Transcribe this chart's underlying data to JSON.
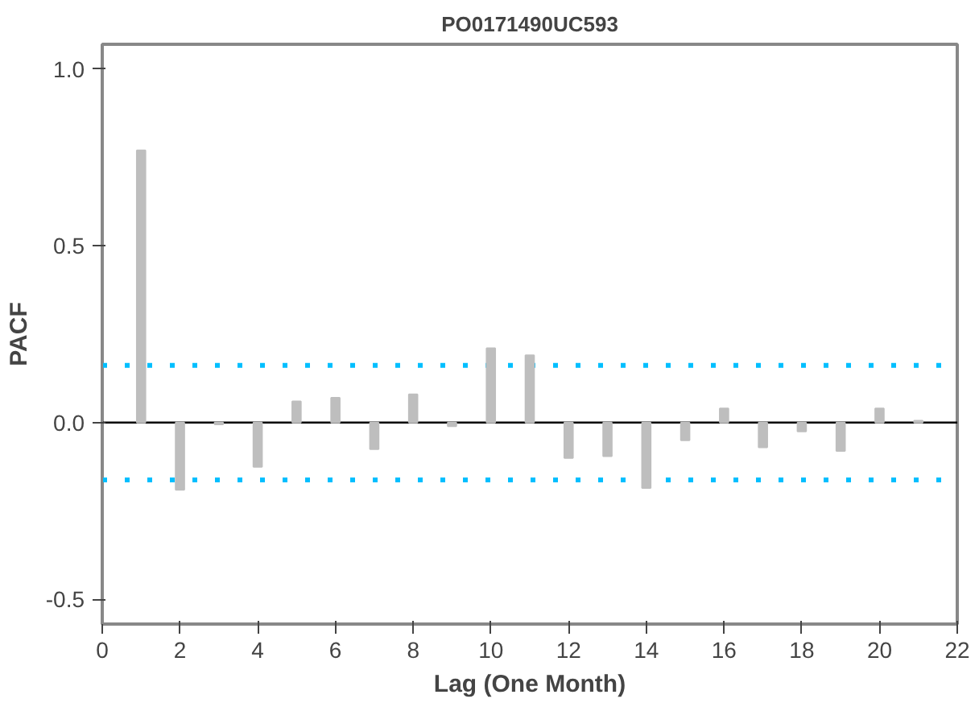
{
  "chart_data": {
    "type": "bar",
    "title": "PO0171490UC593",
    "xlabel": "Lag (One Month)",
    "ylabel": "PACF",
    "x": [
      1,
      2,
      3,
      4,
      5,
      6,
      7,
      8,
      9,
      10,
      11,
      12,
      13,
      14,
      15,
      16,
      17,
      18,
      19,
      20,
      21
    ],
    "series": [
      {
        "color": "#bebebe",
        "values": [
          0.77,
          -0.19,
          -0.005,
          -0.125,
          0.06,
          0.07,
          -0.075,
          0.08,
          -0.01,
          0.21,
          0.19,
          -0.1,
          -0.095,
          -0.185,
          -0.05,
          0.04,
          -0.07,
          -0.025,
          -0.08,
          0.04,
          0.005
        ]
      }
    ],
    "xlim": [
      0,
      22
    ],
    "xticks": [
      0,
      2,
      4,
      6,
      8,
      10,
      12,
      14,
      16,
      18,
      20,
      22
    ],
    "ylim": [
      -0.57,
      1.07
    ],
    "yticks": [
      {
        "value": -0.5,
        "label": "-0.5"
      },
      {
        "value": 0,
        "label": "0.0"
      },
      {
        "value": 0.5,
        "label": "0.5"
      },
      {
        "value": 1,
        "label": "1.0"
      }
    ],
    "ref_lines": [
      {
        "axis": "y",
        "value": 0,
        "color": "#000000",
        "line_style": "solid"
      },
      {
        "axis": "y",
        "value": 0.162,
        "color": "#00bfff",
        "line_style": "dotted"
      },
      {
        "axis": "y",
        "value": -0.162,
        "color": "#00bfff",
        "line_style": "dotted"
      }
    ],
    "grid": false
  }
}
